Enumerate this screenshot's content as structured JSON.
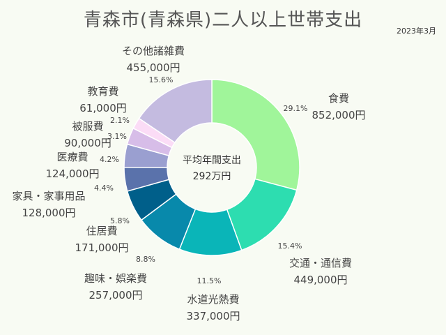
{
  "title": "青森市(青森県)二人以上世帯支出",
  "date": "2023年3月",
  "chart_data": {
    "type": "pie",
    "center_title": "平均年間支出",
    "center_value": "292万円",
    "slices": [
      {
        "name": "食費",
        "value": 852000,
        "value_label": "852,000円",
        "percent": "29.1%",
        "color": "#a0f59a"
      },
      {
        "name": "交通・通信費",
        "value": 449000,
        "value_label": "449,000円",
        "percent": "15.4%",
        "color": "#2dddb0"
      },
      {
        "name": "水道光熱費",
        "value": 337000,
        "value_label": "337,000円",
        "percent": "11.5%",
        "color": "#0ab5b8"
      },
      {
        "name": "趣味・娯楽費",
        "value": 257000,
        "value_label": "257,000円",
        "percent": "8.8%",
        "color": "#0889ab"
      },
      {
        "name": "住居費",
        "value": 171000,
        "value_label": "171,000円",
        "percent": "5.8%",
        "color": "#005f8a"
      },
      {
        "name": "家具・家事用品",
        "value": 128000,
        "value_label": "128,000円",
        "percent": "4.4%",
        "color": "#5a72ab"
      },
      {
        "name": "医療費",
        "value": 124000,
        "value_label": "124,000円",
        "percent": "4.2%",
        "color": "#9a9fd0"
      },
      {
        "name": "被服費",
        "value": 90000,
        "value_label": "90,000円",
        "percent": "3.1%",
        "color": "#d7bde8"
      },
      {
        "name": "教育費",
        "value": 61000,
        "value_label": "61,000円",
        "percent": "2.1%",
        "color": "#fbdcf6"
      },
      {
        "name": "その他諸雑費",
        "value": 455000,
        "value_label": "455,000円",
        "percent": "15.6%",
        "color": "#c4bbe0"
      }
    ]
  }
}
